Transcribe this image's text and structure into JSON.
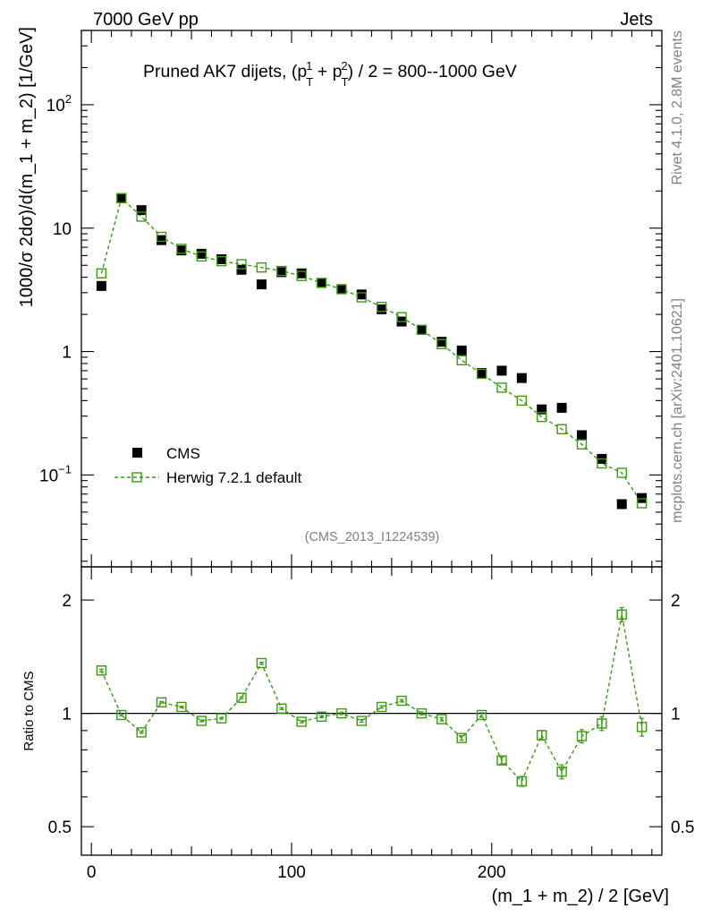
{
  "header": {
    "energy_label": "7000 GeV pp",
    "jets_label": "Jets",
    "side_version": "Rivet 4.1.0,  2.8M events",
    "side_site": "mcplots.cern.ch [arXiv:2401.10621]",
    "analysis_id": "(CMS_2013_I1224539)"
  },
  "colors": {
    "cms": "#000000",
    "herwig": "#3a9a10",
    "axis": "#000000"
  },
  "chart_data": [
    {
      "type": "scatter",
      "panel": "main",
      "title_main": "Pruned AK7 dijets, (p",
      "title_sup1": "1",
      "title_sub1": "T",
      "title_plus": " + p",
      "title_sup2": "2",
      "title_sub2": "T",
      "title_rest": ") / 2 = 800--1000 GeV",
      "ylabel": "1000/σ   2dσ)/d(m_1 + m_2) [1/GeV]",
      "yscale": "log",
      "ylim": [
        0.018,
        400
      ],
      "xlim": [
        -5,
        285
      ],
      "yticks": [
        {
          "v": 0.1,
          "base": "10",
          "exp": "−1"
        },
        {
          "v": 1,
          "base": "1",
          "exp": ""
        },
        {
          "v": 10,
          "base": "10",
          "exp": ""
        },
        {
          "v": 100,
          "base": "10",
          "exp": "2"
        }
      ],
      "x": [
        5,
        15,
        25,
        35,
        45,
        55,
        65,
        75,
        85,
        95,
        105,
        115,
        125,
        135,
        145,
        155,
        165,
        175,
        185,
        195,
        205,
        215,
        225,
        235,
        245,
        255,
        265,
        275
      ],
      "series": [
        {
          "name": "CMS",
          "style": "filled-square",
          "values": [
            3.4,
            17.5,
            14.0,
            8.0,
            6.6,
            6.2,
            5.6,
            4.6,
            3.5,
            4.4,
            4.3,
            3.6,
            3.2,
            2.9,
            2.2,
            1.75,
            1.5,
            1.2,
            1.02,
            0.67,
            0.7,
            0.61,
            0.34,
            0.35,
            0.21,
            0.135,
            0.058,
            0.065
          ]
        },
        {
          "name": "Herwig 7.2.1 default",
          "style": "open-square-dashed",
          "values": [
            4.3,
            17.5,
            12.4,
            8.5,
            6.8,
            5.9,
            5.4,
            5.1,
            4.8,
            4.5,
            4.1,
            3.6,
            3.2,
            2.75,
            2.3,
            1.9,
            1.5,
            1.15,
            0.85,
            0.66,
            0.51,
            0.4,
            0.295,
            0.235,
            0.177,
            0.124,
            0.104,
            0.059
          ]
        }
      ],
      "legend": [
        "CMS",
        "Herwig 7.2.1 default"
      ],
      "legend_position": "lower-left"
    },
    {
      "type": "line",
      "panel": "ratio",
      "ylabel": "Ratio to CMS",
      "xlabel": "(m_1 + m_2) / 2 [GeV]",
      "yscale": "log",
      "ylim": [
        0.42,
        2.45
      ],
      "xlim": [
        -5,
        285
      ],
      "yticks": [
        0.5,
        1,
        2
      ],
      "ytick_labels": [
        "0.5",
        "1",
        "2"
      ],
      "xticks": [
        0,
        100,
        200
      ],
      "xtick_labels": [
        "0",
        "100",
        "200"
      ],
      "reference_line": 1,
      "x": [
        5,
        15,
        25,
        35,
        45,
        55,
        65,
        75,
        85,
        95,
        105,
        115,
        125,
        135,
        145,
        155,
        165,
        175,
        185,
        195,
        205,
        215,
        225,
        235,
        245,
        255,
        265,
        275
      ],
      "series": [
        {
          "name": "Herwig 7.2.1 default / CMS",
          "values": [
            1.3,
            0.99,
            0.89,
            1.07,
            1.04,
            0.955,
            0.97,
            1.1,
            1.36,
            1.03,
            0.95,
            0.98,
            1.0,
            0.955,
            1.04,
            1.08,
            1.0,
            0.965,
            0.86,
            0.99,
            0.75,
            0.66,
            0.875,
            0.7,
            0.87,
            0.94,
            1.83,
            0.92
          ],
          "errors": [
            0.01,
            0.005,
            0.005,
            0.005,
            0.005,
            0.005,
            0.005,
            0.006,
            0.008,
            0.006,
            0.006,
            0.006,
            0.007,
            0.008,
            0.008,
            0.008,
            0.009,
            0.01,
            0.012,
            0.014,
            0.015,
            0.02,
            0.025,
            0.03,
            0.035,
            0.04,
            0.08,
            0.05
          ]
        }
      ]
    }
  ]
}
